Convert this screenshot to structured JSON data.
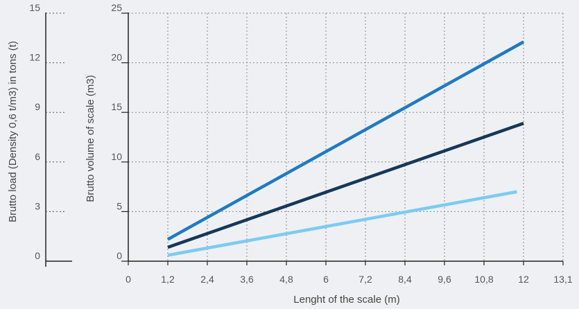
{
  "chart_data": {
    "type": "line",
    "xlabel": "Lenght of the scale (m)",
    "ylabel": "Brutto volume of scale (m3)",
    "ylabel_secondary": "Brutto load (Density 0,6 t/m3) in tons (t)",
    "x_ticks": [
      0,
      1.2,
      2.4,
      3.6,
      4.8,
      6,
      7.2,
      8.4,
      9.6,
      10.8,
      12,
      13.1
    ],
    "x_tick_labels": [
      "0",
      "1,2",
      "2,4",
      "3,6",
      "4,8",
      "6",
      "7,2",
      "8,4",
      "9,6",
      "10,8",
      "12",
      "13,1"
    ],
    "ylim": [
      0,
      25
    ],
    "y_ticks": [
      0,
      5,
      10,
      15,
      20,
      25
    ],
    "y_tick_labels": [
      "0",
      "5",
      "10",
      "15",
      "20",
      "25"
    ],
    "ylim_secondary": [
      0,
      15
    ],
    "y2_ticks": [
      0,
      3,
      6,
      9,
      12,
      15
    ],
    "y2_tick_labels": [
      "0",
      "3",
      "6",
      "9",
      "12",
      "15"
    ],
    "grid": true,
    "series": [
      {
        "color": "#1f7ac2",
        "x": [
          1.2,
          12
        ],
        "y": [
          2.2,
          22.1
        ]
      },
      {
        "color": "#16375a",
        "x": [
          1.2,
          12
        ],
        "y": [
          1.4,
          13.9
        ]
      },
      {
        "color": "#7ccbf1",
        "x": [
          1.2,
          11.8
        ],
        "y": [
          0.6,
          7.0
        ]
      }
    ]
  }
}
